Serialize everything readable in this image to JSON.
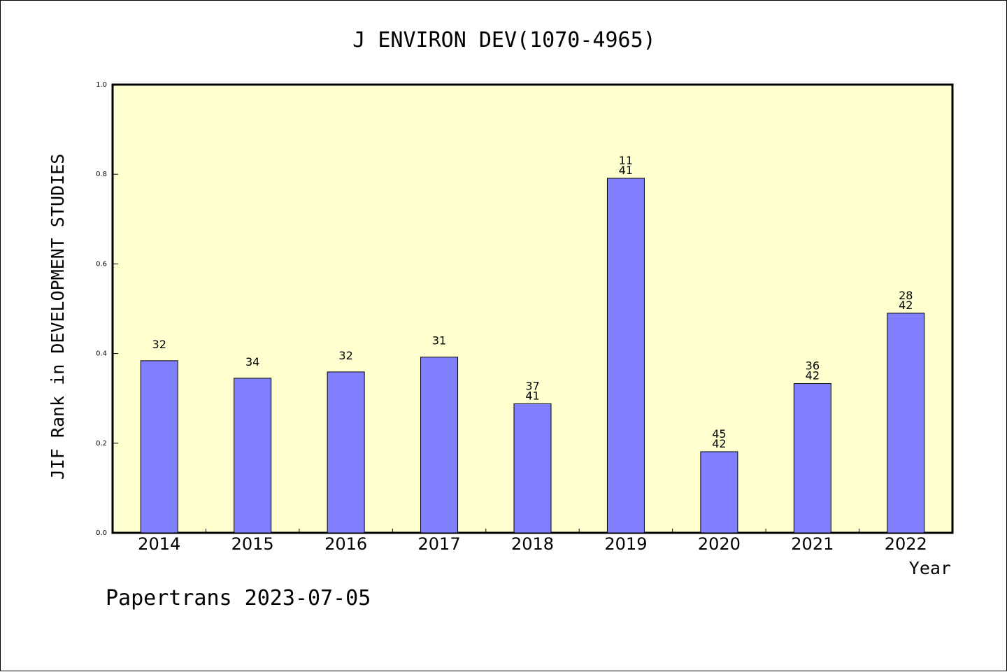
{
  "chart_data": {
    "type": "bar",
    "title": "J ENVIRON DEV(1070-4965)",
    "ylabel": "JIF Rank in DEVELOPMENT STUDIES",
    "xlabel": "Year",
    "ylim": [
      0,
      1.0
    ],
    "yticks": [
      "0.0",
      "0.2",
      "0.4",
      "0.6",
      "0.8",
      "1.0"
    ],
    "categories": [
      "2014",
      "2015",
      "2016",
      "2017",
      "2018",
      "2019",
      "2020",
      "2021",
      "2022"
    ],
    "values": [
      0.384,
      0.345,
      0.359,
      0.392,
      0.288,
      0.791,
      0.181,
      0.333,
      0.49
    ],
    "rank_labels": [
      [
        "32"
      ],
      [
        "34"
      ],
      [
        "32"
      ],
      [
        "31"
      ],
      [
        "37",
        "41"
      ],
      [
        "11",
        "41"
      ],
      [
        "45",
        "42"
      ],
      [
        "36",
        "42"
      ],
      [
        "28",
        "42"
      ]
    ],
    "colors": {
      "bar": "#8080ff",
      "plot_background": "#ffffd0",
      "axis": "#000000"
    },
    "grid": false
  },
  "footer": "Papertrans 2023-07-05"
}
